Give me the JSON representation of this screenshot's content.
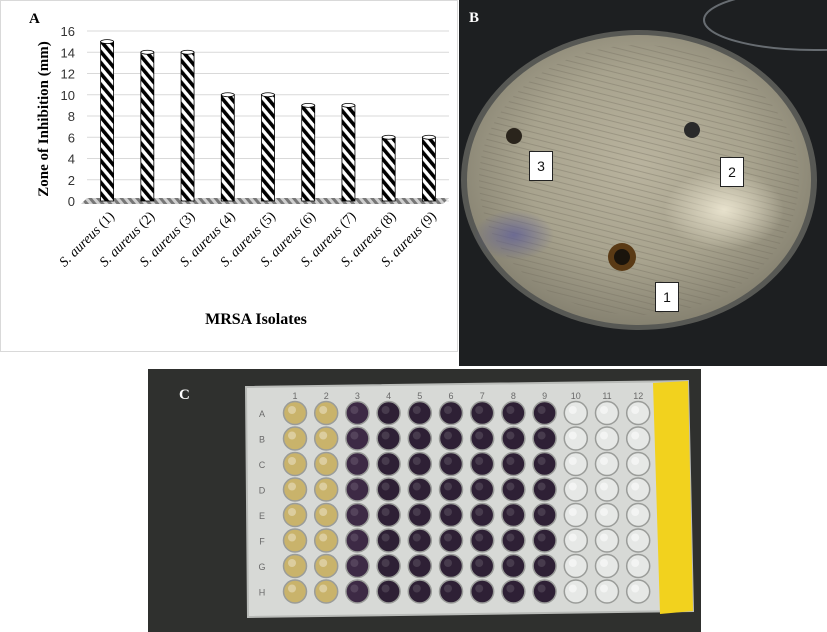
{
  "panels": {
    "a_label": "A",
    "b_label": "B",
    "c_label": "C"
  },
  "chart_data": {
    "type": "bar",
    "categories": [
      "S. aureus (1)",
      "S. aureus (2)",
      "S. aureus (3)",
      "S. aureus (4)",
      "S. aureus (5)",
      "S. aureus (6)",
      "S. aureus (7)",
      "S. aureus (8)",
      "S. aureus (9)"
    ],
    "values": [
      15,
      14,
      14,
      10,
      10,
      9,
      9,
      6,
      6
    ],
    "xlabel": "MRSA Isolates",
    "ylabel": "Zone of Inhibition (mm)",
    "ylim": [
      0,
      16
    ],
    "yticks": [
      "0",
      "2",
      "4",
      "6",
      "8",
      "10",
      "12",
      "14",
      "16"
    ],
    "grid": true,
    "bar_pattern": "diagonal-stripes",
    "colors": {
      "stripe_dark": "#000000",
      "stripe_light": "#ffffff",
      "grid": "#d9d9d9"
    }
  },
  "plate_b": {
    "well_labels": [
      "1",
      "2",
      "3"
    ]
  },
  "plate_c": {
    "columns": [
      "1",
      "2",
      "3",
      "4",
      "5",
      "6",
      "7",
      "8",
      "9",
      "10",
      "11",
      "12"
    ],
    "rows": [
      "A",
      "B",
      "C",
      "D",
      "E",
      "F",
      "G",
      "H"
    ]
  }
}
